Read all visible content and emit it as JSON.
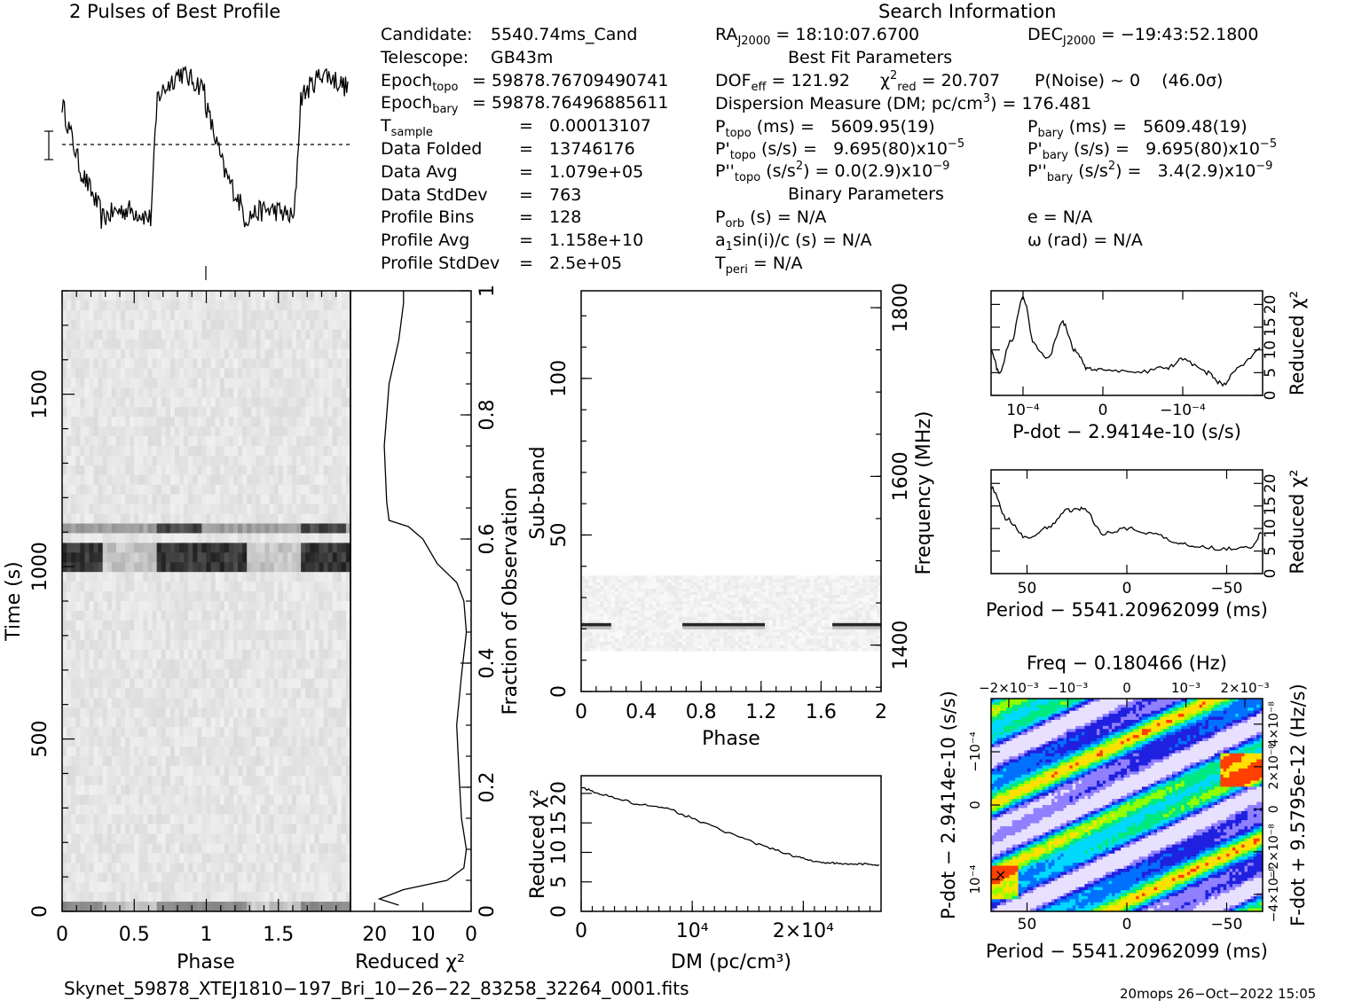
{
  "profile": {
    "title": "2 Pulses of Best Profile"
  },
  "info": {
    "header": "Search Information",
    "left_rows": [
      {
        "label": "Candidate:",
        "value": "5540.74ms_Cand"
      },
      {
        "label": "Telescope:",
        "value": "GB43m"
      },
      {
        "label": "Epoch",
        "sub": "topo",
        "value": "= 59878.76709490741"
      },
      {
        "label": "Epoch",
        "sub": "bary",
        "value": "= 59878.76496885611"
      },
      {
        "label": "T",
        "sub": "sample",
        "value": "=   0.00013107"
      },
      {
        "label": "Data Folded",
        "value": "=   13746176"
      },
      {
        "label": "Data Avg",
        "value": "=   1.079e+05"
      },
      {
        "label": "Data StdDev",
        "value": "=   763"
      },
      {
        "label": "Profile Bins",
        "value": "=   128"
      },
      {
        "label": "Profile Avg",
        "value": "=   1.158e+10"
      },
      {
        "label": "Profile StdDev",
        "value": "=   2.5e+05"
      }
    ],
    "ra": {
      "label": "RA",
      "sub": "J2000",
      "value": "= 18:10:07.6700"
    },
    "dec": {
      "label": "DEC",
      "sub": "J2000",
      "value": "= −19:43:52.1800"
    },
    "best_fit_header": "Best Fit Parameters",
    "dof": {
      "label": "DOF",
      "sub": "eff",
      "value": "= 121.92"
    },
    "chi2red": {
      "label": "χ",
      "sup": "2",
      "sub": "red",
      "value": "= 20.707"
    },
    "pnoise": {
      "text": "P(Noise) ~ 0",
      "sigma": "(46.0σ)"
    },
    "dm_row": {
      "label": "Dispersion Measure (DM; pc/cm",
      "sup": "3",
      "value": ") = 176.481"
    },
    "ptopo": {
      "label": "P",
      "sub": "topo",
      "value": " (ms) =   5609.95(19)"
    },
    "pbary": {
      "label": "P",
      "sub": "bary",
      "value": " (ms) =   5609.48(19)"
    },
    "pdtopo": {
      "label": "P'",
      "sub": "topo",
      "value": " (s/s) =   9.695(80)x10",
      "exp": "−5"
    },
    "pdbary": {
      "label": "P'",
      "sub": "bary",
      "value": " (s/s) =   9.695(80)x10",
      "exp": "−5"
    },
    "pddtopo": {
      "label": "P''",
      "sub": "topo",
      "value": " (s/s",
      "sup": "2",
      "value2": ") = 0.0(2.9)x10",
      "exp": "−9"
    },
    "pddbary": {
      "label": "P''",
      "sub": "bary",
      "value": " (s/s",
      "sup": "2",
      "value2": ") =   3.4(2.9)x10",
      "exp": "−9"
    },
    "binary_header": "Binary Parameters",
    "porb": {
      "label": "P",
      "sub": "orb",
      "value": " (s) = N/A"
    },
    "ecc": {
      "text": "e = N/A"
    },
    "a1": {
      "label": "a",
      "sub": "1",
      "value": "sin(i)/c (s) = N/A"
    },
    "omega": {
      "text": "ω (rad) = N/A"
    },
    "tperi": {
      "label": "T",
      "sub": "peri",
      "value": " = N/A"
    }
  },
  "footer": {
    "filename": "Skynet_59878_XTEJ1810−197_Bri_10−26−22_83258_32264_0001.fits",
    "stamp": "20mops 26−Oct−2022 15:05"
  },
  "chart_data": [
    {
      "id": "best-profile",
      "type": "line",
      "title": "2 Pulses of Best Profile",
      "xlim": [
        0,
        2
      ],
      "baseline": "dashed",
      "description_levels": "two pulses: high plateau phase ~0.65-1.2 and ~1.65-2.0, low trough ~0.25-0.65 and ~1.25-1.65"
    },
    {
      "id": "time-phase",
      "type": "heatmap",
      "xlabel": "Phase",
      "ylabel": "Time (s)",
      "x_ticks": [
        "0",
        "0.5",
        "1",
        "1.5"
      ],
      "y_ticks": [
        "0",
        "500",
        "1000",
        "1500"
      ],
      "xlim": [
        0,
        2
      ],
      "ylim": [
        0,
        1800
      ],
      "bright_bands_s": [
        1000,
        1050,
        1120
      ]
    },
    {
      "id": "time-chi2",
      "type": "line",
      "xlabel": "Reduced χ²",
      "ylabel": "Fraction of Observation",
      "x_ticks": [
        "20",
        "10",
        "0"
      ],
      "y_ticks": [
        "0",
        "0.2",
        "0.4",
        "0.6",
        "0.8",
        "1"
      ],
      "xlim": [
        25,
        0
      ],
      "ylim": [
        0,
        1
      ],
      "points": [
        [
          15,
          0.01
        ],
        [
          19,
          0.02
        ],
        [
          14,
          0.035
        ],
        [
          5,
          0.05
        ],
        [
          1.5,
          0.07
        ],
        [
          1,
          0.1
        ],
        [
          2,
          0.15
        ],
        [
          2.5,
          0.22
        ],
        [
          3,
          0.3
        ],
        [
          2,
          0.38
        ],
        [
          1,
          0.45
        ],
        [
          1.5,
          0.5
        ],
        [
          3,
          0.53
        ],
        [
          7,
          0.56
        ],
        [
          10,
          0.6
        ],
        [
          13,
          0.62
        ],
        [
          17,
          0.63
        ],
        [
          17.5,
          0.66
        ],
        [
          18,
          0.75
        ],
        [
          17,
          0.85
        ],
        [
          15,
          0.92
        ],
        [
          14,
          0.98
        ],
        [
          14,
          1.0
        ]
      ]
    },
    {
      "id": "freq-phase",
      "type": "heatmap",
      "xlabel": "Phase",
      "ylabel": "Sub-band",
      "y2label": "Frequency (MHz)",
      "x_ticks": [
        "0",
        "0.4",
        "0.8",
        "1.2",
        "1.6",
        "2"
      ],
      "y_ticks": [
        "0",
        "50",
        "100"
      ],
      "y2_ticks": [
        "1400",
        "1600",
        "1800"
      ],
      "xlim": [
        0,
        2
      ],
      "ylim": [
        0,
        128
      ],
      "y2lim": [
        1345,
        1820
      ],
      "occupied_subbands": [
        13,
        37
      ],
      "pulse_subband": 21
    },
    {
      "id": "dm-chi2",
      "type": "line",
      "xlabel": "DM (pc/cm³)",
      "ylabel": "Reduced χ²",
      "x_ticks": [
        "0",
        "10⁴",
        "2×10⁴"
      ],
      "y_ticks": [
        "0",
        "5",
        "10",
        "15",
        "20"
      ],
      "xlim": [
        0,
        27000
      ],
      "ylim": [
        0,
        23
      ],
      "points": [
        [
          0,
          21
        ],
        [
          2000,
          19.8
        ],
        [
          5000,
          18.2
        ],
        [
          8000,
          17.3
        ],
        [
          10000,
          15.8
        ],
        [
          13000,
          13.5
        ],
        [
          16000,
          11.3
        ],
        [
          19000,
          9.5
        ],
        [
          21000,
          8.5
        ],
        [
          23000,
          8.1
        ],
        [
          25000,
          8.0
        ],
        [
          27000,
          7.9
        ]
      ]
    },
    {
      "id": "pdot-chi2",
      "type": "line",
      "xlabel": "P-dot − 2.9414e-10 (s/s)",
      "ylabel": "Reduced χ²",
      "x_ticks": [
        "10⁻⁴",
        "0",
        "−10⁻⁴"
      ],
      "y_ticks": [
        "0",
        "5",
        "10",
        "15",
        "20"
      ],
      "xlim": [
        0.00014,
        -0.0002
      ],
      "ylim": [
        0,
        23
      ],
      "points": [
        [
          0.00014,
          10
        ],
        [
          0.00013,
          5
        ],
        [
          0.000115,
          12
        ],
        [
          0.0001,
          21.5
        ],
        [
          8.5e-05,
          11
        ],
        [
          7e-05,
          8
        ],
        [
          5e-05,
          16
        ],
        [
          3.5e-05,
          10
        ],
        [
          2e-05,
          6
        ],
        [
          0,
          5.5
        ],
        [
          -4e-05,
          5
        ],
        [
          -8e-05,
          6
        ],
        [
          -0.0001,
          8
        ],
        [
          -0.00013,
          5
        ],
        [
          -0.00015,
          2.5
        ],
        [
          -0.00017,
          6
        ],
        [
          -0.0002,
          11
        ]
      ]
    },
    {
      "id": "period-chi2",
      "type": "line",
      "xlabel": "Period − 5541.20962099 (ms)",
      "ylabel": "Reduced χ²",
      "x_ticks": [
        "50",
        "0",
        "−50"
      ],
      "y_ticks": [
        "0",
        "5",
        "10",
        "15",
        "20"
      ],
      "xlim": [
        68,
        -68
      ],
      "ylim": [
        0,
        23
      ],
      "points": [
        [
          68,
          19
        ],
        [
          60,
          12
        ],
        [
          50,
          8
        ],
        [
          40,
          10
        ],
        [
          30,
          14
        ],
        [
          22,
          14.5
        ],
        [
          12,
          9
        ],
        [
          0,
          10
        ],
        [
          -12,
          9
        ],
        [
          -25,
          7
        ],
        [
          -35,
          6
        ],
        [
          -50,
          5.5
        ],
        [
          -62,
          6
        ],
        [
          -68,
          9
        ]
      ]
    },
    {
      "id": "period-pdot",
      "type": "heatmap",
      "xlabel": "Period − 5541.20962099 (ms)",
      "ylabel": "P-dot − 2.9414e-10 (s/s)",
      "x2label": "Freq − 0.180466 (Hz)",
      "y2label": "F-dot + 9.5795e-12 (Hz/s)",
      "x_ticks": [
        "50",
        "0",
        "−50"
      ],
      "y_ticks": [
        "−10⁻⁴",
        "0",
        "10⁻⁴"
      ],
      "x2_ticks": [
        "−2×10⁻³",
        "−10⁻³",
        "0",
        "10⁻³",
        "2×10⁻³"
      ],
      "y2_ticks": [
        "4×10⁻⁸",
        "2×10⁻⁸",
        "0",
        "−2×10⁻⁸",
        "−4×10⁻⁸"
      ],
      "colormap": [
        "#e8e0ff",
        "#9080ff",
        "#2020e0",
        "#0070ff",
        "#00d8ff",
        "#00e880",
        "#90ff00",
        "#ffe000",
        "#ff4000"
      ]
    }
  ]
}
